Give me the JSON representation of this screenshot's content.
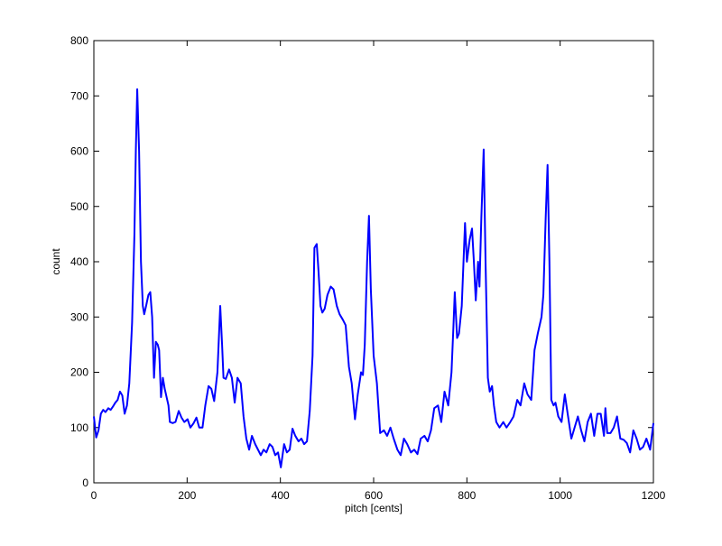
{
  "chart_data": {
    "type": "line",
    "x_label": "pitch [cents]",
    "y_label": "count",
    "xlim": [
      0,
      1200
    ],
    "ylim": [
      0,
      800
    ],
    "xticks": [
      0,
      200,
      400,
      600,
      800,
      1000,
      1200
    ],
    "yticks": [
      0,
      100,
      200,
      300,
      400,
      500,
      600,
      700,
      800
    ],
    "grid": false,
    "x": [
      0,
      5,
      10,
      15,
      20,
      25,
      31,
      36,
      41,
      46,
      51,
      56,
      61,
      66,
      71,
      76,
      82,
      87,
      90,
      93,
      97,
      101,
      105,
      108,
      112,
      117,
      121,
      125,
      129,
      133,
      137,
      140,
      144,
      148,
      152,
      156,
      160,
      163,
      169,
      175,
      182,
      188,
      194,
      201,
      207,
      214,
      220,
      226,
      233,
      239,
      246,
      252,
      258,
      265,
      271,
      275,
      278,
      283,
      290,
      296,
      302,
      308,
      315,
      321,
      327,
      333,
      339,
      346,
      352,
      358,
      364,
      370,
      377,
      383,
      389,
      395,
      401,
      408,
      414,
      420,
      426,
      432,
      439,
      445,
      451,
      457,
      463,
      469,
      473,
      478,
      482,
      486,
      490,
      495,
      501,
      508,
      514,
      521,
      527,
      534,
      540,
      547,
      553,
      560,
      566,
      573,
      577,
      581,
      586,
      590,
      594,
      600,
      607,
      614,
      622,
      629,
      636,
      643,
      651,
      658,
      665,
      672,
      680,
      687,
      694,
      701,
      709,
      716,
      723,
      730,
      738,
      745,
      752,
      760,
      767,
      771,
      774,
      779,
      783,
      789,
      796,
      800,
      806,
      811,
      815,
      819,
      824,
      827,
      831,
      836,
      840,
      845,
      849,
      854,
      858,
      863,
      870,
      878,
      885,
      893,
      900,
      908,
      915,
      923,
      930,
      938,
      945,
      952,
      960,
      964,
      969,
      973,
      977,
      981,
      986,
      990,
      996,
      1003,
      1010,
      1017,
      1024,
      1031,
      1038,
      1045,
      1052,
      1059,
      1066,
      1073,
      1080,
      1087,
      1094,
      1097,
      1101,
      1108,
      1115,
      1122,
      1129,
      1136,
      1143,
      1150,
      1157,
      1164,
      1171,
      1178,
      1185,
      1193,
      1200
    ],
    "series": [
      {
        "name": "count",
        "color": "#0000ff",
        "values": [
          120,
          82,
          95,
          125,
          132,
          128,
          135,
          132,
          138,
          145,
          150,
          165,
          158,
          125,
          140,
          180,
          290,
          450,
          600,
          712,
          600,
          400,
          320,
          305,
          320,
          340,
          345,
          300,
          190,
          255,
          250,
          240,
          155,
          190,
          170,
          155,
          140,
          110,
          108,
          110,
          130,
          118,
          110,
          115,
          100,
          108,
          118,
          100,
          100,
          140,
          175,
          170,
          148,
          200,
          320,
          250,
          190,
          188,
          205,
          190,
          145,
          190,
          180,
          120,
          80,
          60,
          85,
          70,
          60,
          50,
          60,
          55,
          70,
          65,
          50,
          55,
          28,
          70,
          55,
          60,
          98,
          85,
          75,
          80,
          70,
          75,
          130,
          230,
          425,
          432,
          380,
          320,
          308,
          315,
          340,
          355,
          350,
          320,
          305,
          295,
          285,
          210,
          180,
          115,
          160,
          200,
          195,
          250,
          400,
          483,
          350,
          230,
          180,
          90,
          95,
          85,
          100,
          80,
          60,
          50,
          80,
          70,
          55,
          60,
          52,
          80,
          85,
          75,
          95,
          135,
          140,
          110,
          165,
          140,
          200,
          280,
          345,
          262,
          270,
          320,
          470,
          400,
          440,
          460,
          400,
          330,
          400,
          355,
          480,
          603,
          400,
          190,
          165,
          175,
          140,
          110,
          100,
          110,
          100,
          110,
          120,
          150,
          140,
          180,
          160,
          150,
          240,
          270,
          300,
          340,
          480,
          575,
          400,
          150,
          140,
          145,
          120,
          110,
          160,
          120,
          80,
          100,
          120,
          95,
          75,
          110,
          125,
          85,
          125,
          125,
          85,
          135,
          90,
          90,
          100,
          120,
          80,
          78,
          72,
          55,
          95,
          80,
          60,
          65,
          80,
          60,
          108
        ]
      }
    ]
  }
}
